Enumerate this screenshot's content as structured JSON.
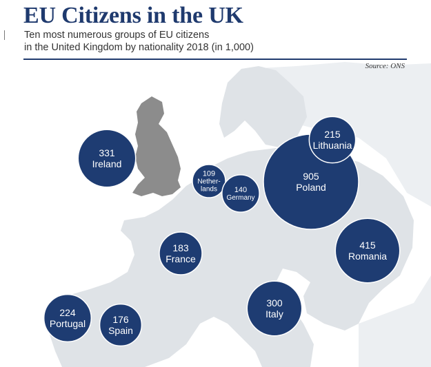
{
  "header": {
    "title": "EU Citizens in the UK",
    "subtitle_line1": "Ten most numerous groups of EU citizens",
    "subtitle_line2": "in the United Kingdom by nationality 2018 (in 1,000)",
    "source": "Source: ONS"
  },
  "colors": {
    "bubble": "#1e3c72",
    "bubble_stroke": "#ffffff",
    "title": "#1f3a6e",
    "uk_land": "#8c8c8c",
    "europe_land": "#dfe3e7",
    "europe_land_far": "#eceff2",
    "background": "#ffffff"
  },
  "chart_data": {
    "type": "bubble-map",
    "title": "EU Citizens in the UK",
    "subtitle": "Ten most numerous groups of EU citizens in the United Kingdom by nationality 2018 (in 1,000)",
    "source": "Source: ONS",
    "unit": "1,000",
    "points": [
      {
        "country": "Ireland",
        "label_lines": [
          "Ireland"
        ],
        "value": 331
      },
      {
        "country": "Netherlands",
        "label_lines": [
          "Nether-",
          "lands"
        ],
        "value": 109
      },
      {
        "country": "Germany",
        "label_lines": [
          "Germany"
        ],
        "value": 140
      },
      {
        "country": "Poland",
        "label_lines": [
          "Poland"
        ],
        "value": 905
      },
      {
        "country": "Lithuania",
        "label_lines": [
          "Lithuania"
        ],
        "value": 215
      },
      {
        "country": "France",
        "label_lines": [
          "France"
        ],
        "value": 183
      },
      {
        "country": "Romania",
        "label_lines": [
          "Romania"
        ],
        "value": 415
      },
      {
        "country": "Portugal",
        "label_lines": [
          "Portugal"
        ],
        "value": 224
      },
      {
        "country": "Spain",
        "label_lines": [
          "Spain"
        ],
        "value": 176
      },
      {
        "country": "Italy",
        "label_lines": [
          "Italy"
        ],
        "value": 300
      }
    ]
  }
}
